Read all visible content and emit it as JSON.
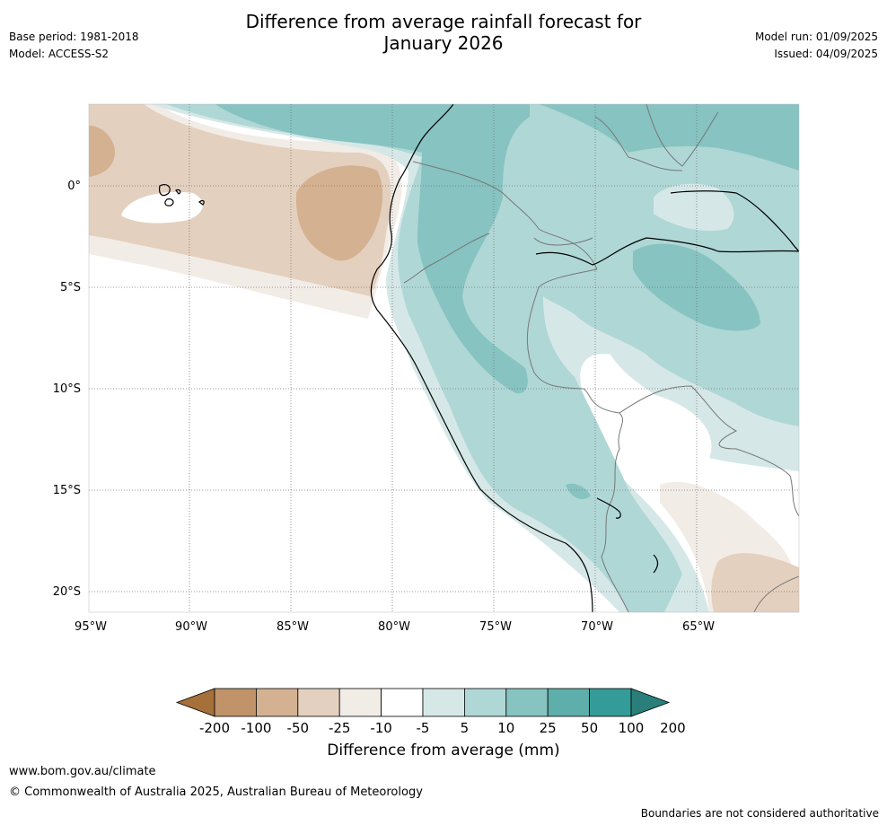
{
  "header": {
    "title_line1": "Difference from average rainfall forecast for",
    "title_line2": "January 2026",
    "base_period": "Base period: 1981-2018",
    "model": "Model: ACCESS-S2",
    "model_run": "Model run: 01/09/2025",
    "issued": "Issued: 04/09/2025"
  },
  "map": {
    "lat_labels": [
      "0°",
      "5°S",
      "10°S",
      "15°S",
      "20°S"
    ],
    "lon_labels": [
      "95°W",
      "90°W",
      "85°W",
      "80°W",
      "75°W",
      "70°W",
      "65°W"
    ],
    "extent": {
      "lon_min": -95,
      "lon_max": -60,
      "lat_min": -21,
      "lat_max": 4
    }
  },
  "legend": {
    "title": "Difference from average (mm)",
    "ticks": [
      "-200",
      "-100",
      "-50",
      "-25",
      "-10",
      "-5",
      "5",
      "10",
      "25",
      "50",
      "100",
      "200"
    ],
    "colors": [
      "#a6703a",
      "#c0936a",
      "#d4b191",
      "#e4d0be",
      "#f2ece6",
      "#ffffff",
      "#d5e8e7",
      "#afd7d6",
      "#86c3c1",
      "#5eafab",
      "#339c98",
      "#2a7f7b"
    ]
  },
  "footer": {
    "url": "www.bom.gov.au/climate",
    "copyright": "© Commonwealth of Australia 2025, Australian Bureau of Meteorology",
    "disclaimer": "Boundaries are not considered authoritative"
  }
}
